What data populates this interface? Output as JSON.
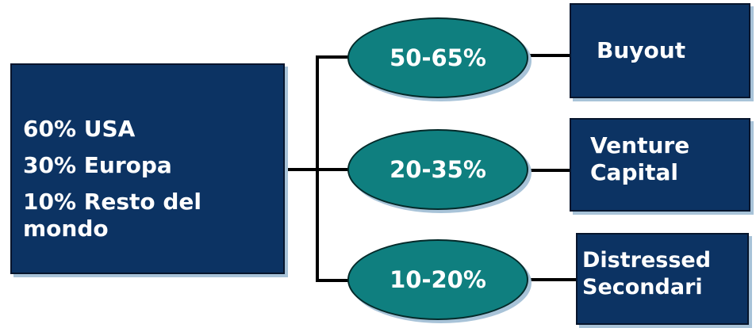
{
  "regions": {
    "lines": [
      "60% USA",
      "30% Europa",
      "10% Resto del",
      "mondo"
    ]
  },
  "branches": [
    {
      "range": "50-65%",
      "lines": [
        "Buyout"
      ]
    },
    {
      "range": "20-35%",
      "lines": [
        "Venture",
        "Capital"
      ]
    },
    {
      "range": "10-20%",
      "lines": [
        "Distressed",
        "Secondari"
      ]
    }
  ],
  "colors": {
    "box_fill": "#0c3363",
    "ellipse_fill": "#0f7f7f",
    "shadow": "#a8c3d8",
    "text": "#ffffff",
    "connector": "#000000"
  }
}
